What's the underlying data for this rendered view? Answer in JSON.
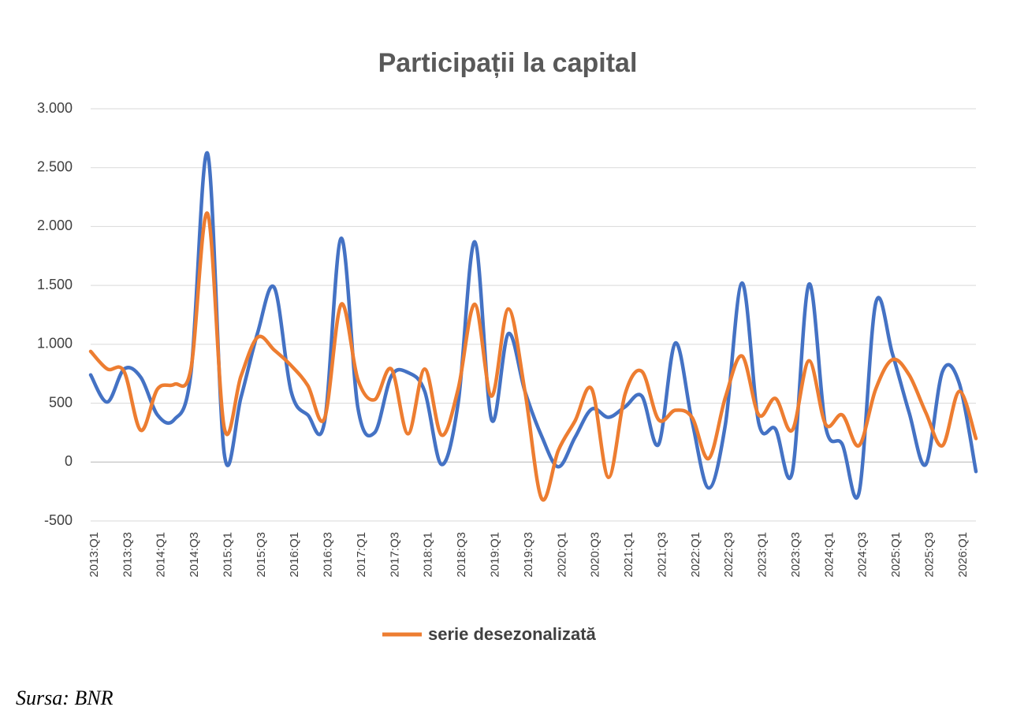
{
  "chart_data": {
    "type": "line",
    "title": "Participații la capital",
    "source": "Sursa: BNR",
    "categories": [
      "2013:Q1",
      null,
      "2013:Q3",
      null,
      "2014:Q1",
      null,
      "2014:Q3",
      null,
      "2015:Q1",
      null,
      "2015:Q3",
      null,
      "2016:Q1",
      null,
      "2016:Q3",
      null,
      "2017:Q1",
      null,
      "2017:Q3",
      null,
      "2018:Q1",
      null,
      "2018:Q3",
      null,
      "2019:Q1",
      null,
      "2019:Q3",
      null,
      "2020:Q1",
      null,
      "2020:Q3",
      null,
      "2021:Q1",
      null,
      "2021:Q3",
      null,
      "2022:Q1",
      null,
      "2022:Q3",
      null,
      "2023:Q1",
      null,
      "2023:Q3",
      null,
      "2024:Q1",
      null,
      "2024:Q3",
      null,
      "2025:Q1",
      null,
      "2025:Q3",
      null,
      "2026:Q1",
      null
    ],
    "series": [
      {
        "color": "#4472c4",
        "values": [
          740,
          510,
          790,
          720,
          400,
          360,
          750,
          2620,
          70,
          550,
          1100,
          1480,
          600,
          400,
          340,
          1900,
          460,
          250,
          730,
          760,
          600,
          -20,
          500,
          1870,
          360,
          1090,
          600,
          220,
          -40,
          210,
          450,
          380,
          470,
          560,
          150,
          1010,
          350,
          -220,
          320,
          1520,
          330,
          280,
          -90,
          1510,
          300,
          150,
          -260,
          1350,
          920,
          420,
          -20,
          770,
          670,
          -80
        ]
      },
      {
        "name": "serie desezonalizată",
        "color": "#ed7d31",
        "values": [
          940,
          790,
          770,
          270,
          620,
          660,
          790,
          2110,
          290,
          730,
          1060,
          950,
          820,
          650,
          370,
          1340,
          700,
          530,
          790,
          240,
          790,
          230,
          620,
          1340,
          560,
          1300,
          600,
          -310,
          100,
          350,
          620,
          -130,
          580,
          770,
          360,
          440,
          380,
          30,
          550,
          900,
          400,
          540,
          270,
          860,
          320,
          400,
          140,
          620,
          870,
          740,
          420,
          140,
          600,
          200
        ]
      }
    ],
    "ylim": [
      -500,
      3000
    ],
    "yticks": [
      -500,
      0,
      500,
      {
        "value": 1000,
        "label": "1.000"
      },
      {
        "value": 1500,
        "label": "1.500"
      },
      {
        "value": 2000,
        "label": "2.000"
      },
      {
        "value": 2500,
        "label": "2.500"
      },
      {
        "value": 3000,
        "label": "3.000"
      }
    ],
    "grid": true
  }
}
